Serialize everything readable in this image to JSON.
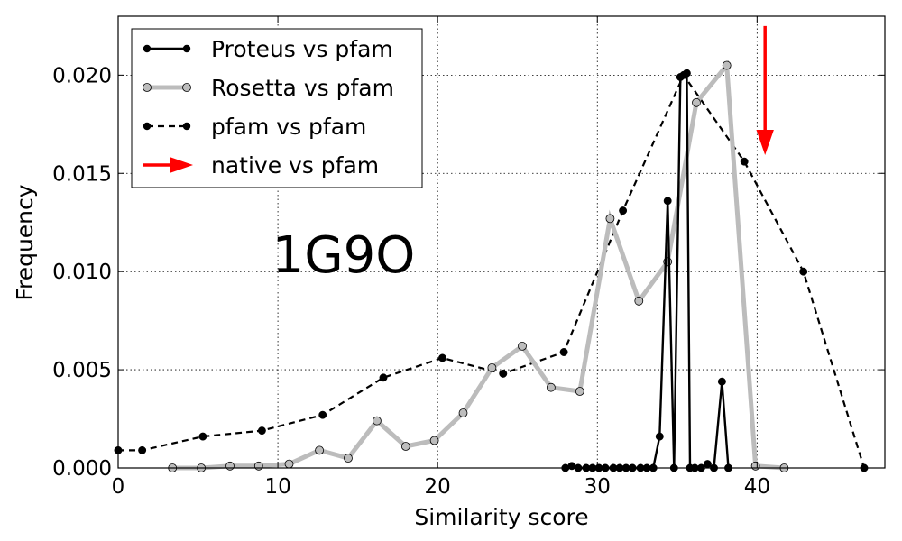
{
  "chart_data": {
    "type": "line",
    "xlabel": "Similarity score",
    "ylabel": "Frequency",
    "xlim": [
      0,
      48
    ],
    "ylim": [
      0,
      0.023
    ],
    "xticks": [
      0,
      10,
      20,
      30,
      40
    ],
    "xtick_labels": [
      "0",
      "10",
      "20",
      "30",
      "40"
    ],
    "yticks": [
      0,
      0.005,
      0.01,
      0.015,
      0.02
    ],
    "ytick_labels": [
      "0.000",
      "0.005",
      "0.010",
      "0.015",
      "0.020"
    ],
    "grid": true,
    "legend_position": "top-left",
    "annotation": "1G9O",
    "series": [
      {
        "name": "Proteus vs pfam",
        "style": "solid-black-dots",
        "color": "#000000",
        "x": [
          28.0,
          28.4,
          28.8,
          29.3,
          29.7,
          30.1,
          30.5,
          31.0,
          31.4,
          31.8,
          32.2,
          32.7,
          33.1,
          33.5,
          33.9,
          34.4,
          34.8,
          35.2,
          35.6,
          35.8,
          36.1,
          36.5,
          36.9,
          37.3,
          37.8,
          38.2
        ],
        "y": [
          0.0,
          0.0001,
          0.0,
          0.0,
          0.0,
          0.0,
          0.0,
          0.0,
          0.0,
          0.0,
          0.0,
          0.0,
          0.0,
          0.0,
          0.0016,
          0.0136,
          0.0,
          0.0199,
          0.0201,
          0.0,
          0.0,
          0.0,
          0.0002,
          0.0,
          0.0044,
          0.0
        ]
      },
      {
        "name": "Rosetta vs pfam",
        "style": "thick-grey-hollow",
        "color": "#bbbbbb",
        "x": [
          3.4,
          5.2,
          7.0,
          8.8,
          10.7,
          12.6,
          14.4,
          16.2,
          18.0,
          19.8,
          21.6,
          23.4,
          25.3,
          27.1,
          28.9,
          30.8,
          32.6,
          34.4,
          36.2,
          38.1,
          39.9,
          41.7
        ],
        "y": [
          0.0,
          0.0,
          0.0001,
          0.0001,
          0.0002,
          0.0009,
          0.0005,
          0.0024,
          0.0011,
          0.0014,
          0.0028,
          0.0051,
          0.0062,
          0.0041,
          0.0039,
          0.0127,
          0.0085,
          0.0105,
          0.0186,
          0.0205,
          0.0001,
          0.0
        ]
      },
      {
        "name": "pfam vs pfam",
        "style": "dashed-black-dots",
        "color": "#000000",
        "x": [
          0.0,
          1.5,
          5.3,
          9.0,
          12.8,
          16.6,
          20.3,
          24.1,
          27.9,
          31.6,
          35.4,
          39.2,
          42.9,
          46.7
        ],
        "y": [
          0.0009,
          0.0009,
          0.0016,
          0.0019,
          0.0027,
          0.0046,
          0.0056,
          0.0048,
          0.0059,
          0.0131,
          0.02,
          0.0156,
          0.01,
          0.0
        ]
      }
    ],
    "native": {
      "name": "native vs pfam",
      "x": 40.5,
      "y_top": 0.0225,
      "y_head": 0.016,
      "color": "#ff0000"
    }
  }
}
